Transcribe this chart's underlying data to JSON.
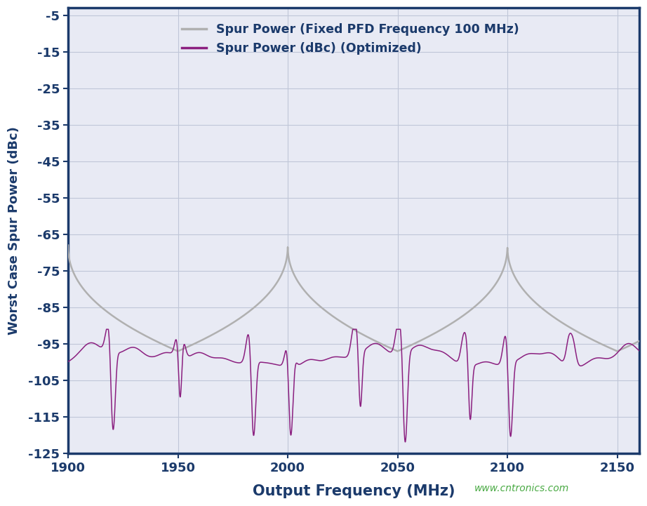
{
  "title": "",
  "xlabel": "Output Frequency (MHz)",
  "ylabel": "Worst Case Spur Power (dBc)",
  "xlim": [
    1900,
    2160
  ],
  "ylim": [
    -125,
    -3
  ],
  "xticks": [
    1900,
    1950,
    2000,
    2050,
    2100,
    2150
  ],
  "yticks": [
    -125,
    -115,
    -105,
    -95,
    -85,
    -75,
    -65,
    -55,
    -45,
    -35,
    -25,
    -15,
    -5
  ],
  "outer_bg_color": "#ffffff",
  "plot_bg_color": "#e8eaf4",
  "grid_color": "#c0c6d8",
  "border_color": "#1b3a6b",
  "tick_label_color": "#1b3a6b",
  "label_color": "#1b3a6b",
  "legend_label_fixed": "Spur Power (Fixed PFD Frequency 100 MHz)",
  "legend_label_opt": "Spur Power (dBc) (Optimized)",
  "fixed_color": "#b0b0b0",
  "opt_color": "#8b2080",
  "watermark": "www.cntronics.com",
  "watermark_color": "#4aaa44",
  "pfd_freq": 100,
  "freq_start": 1900,
  "freq_end": 2160,
  "gray_peak_dbc": -68,
  "gray_min_dbc": -97,
  "opt_base": -100,
  "opt_dip_depth": -119,
  "opt_spike_height": -93
}
